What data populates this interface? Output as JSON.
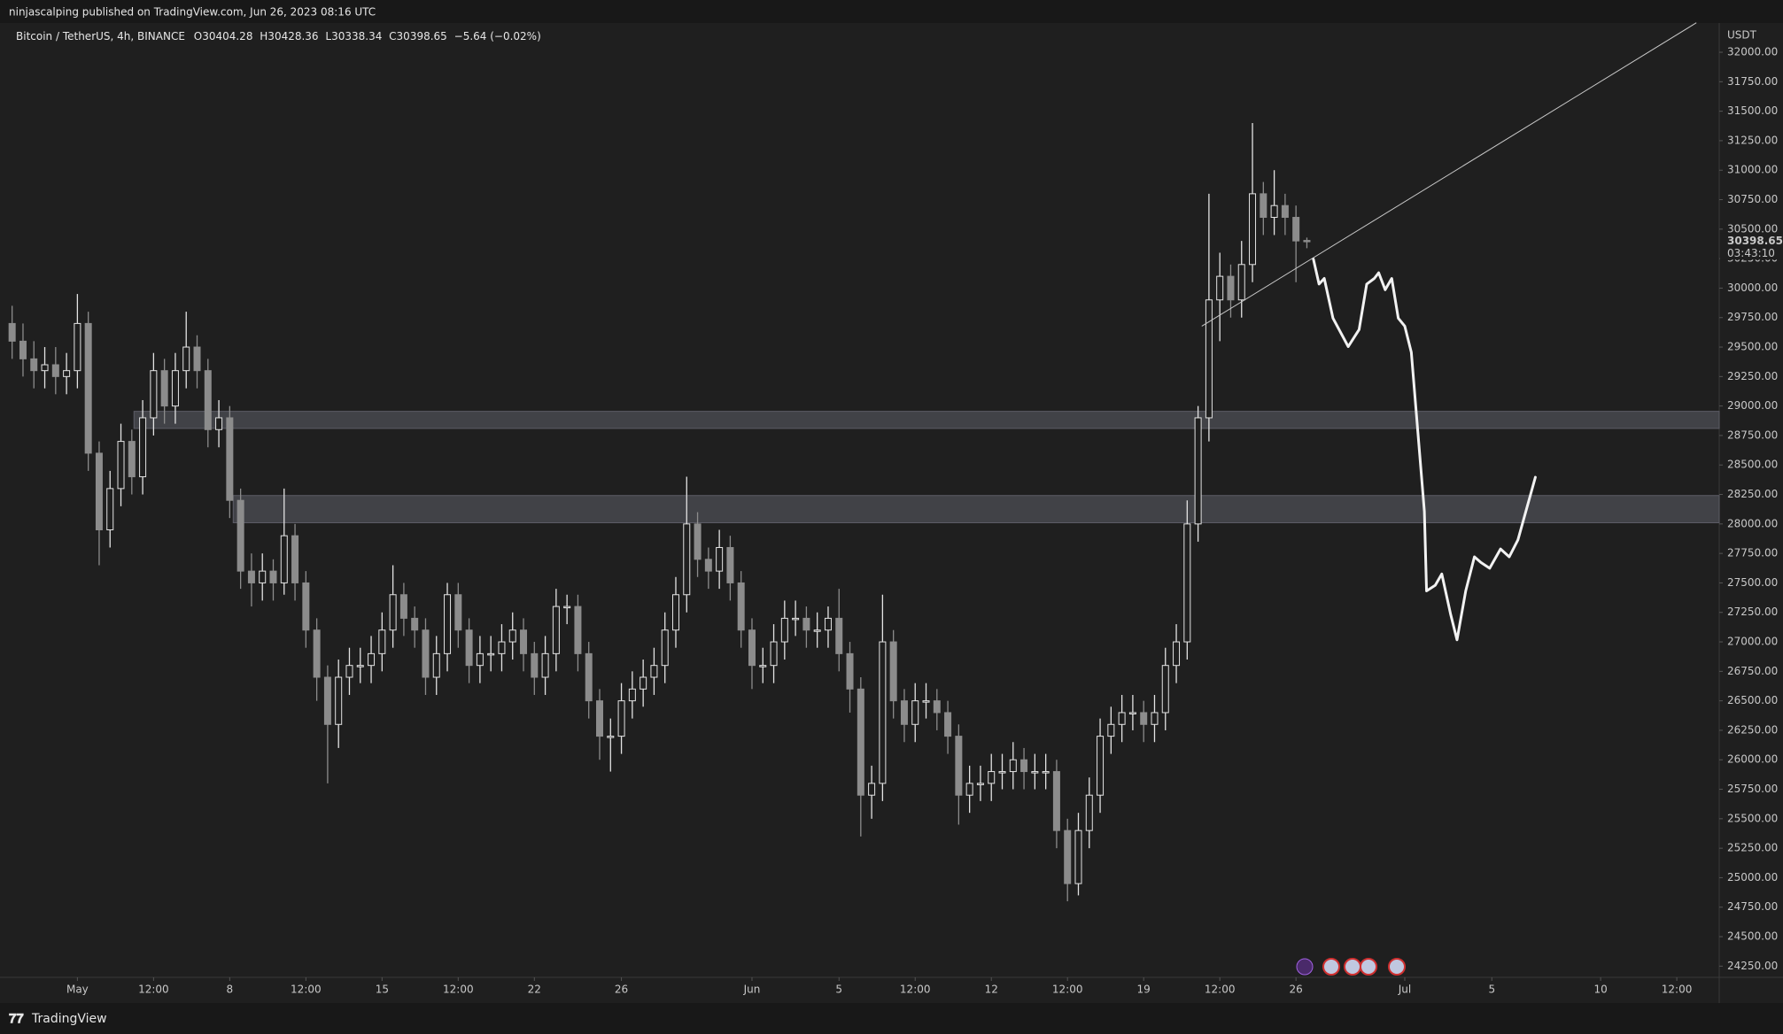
{
  "header": {
    "publisher": "ninjascalping published on TradingView.com, Jun 26, 2023 08:16 UTC"
  },
  "footer": {
    "brand": "TradingView"
  },
  "chart_data": {
    "type": "candlestick",
    "symbol": "Bitcoin / TetherUS, 4h, BINANCE",
    "ohlc_legend": [
      "O30404.28",
      "H30428.36",
      "L30338.34",
      "C30398.65",
      "−5.64 (−0.02%)"
    ],
    "currency": "USDT",
    "last_price_label": "30398.65",
    "countdown": "03:43:10",
    "up_color": "#e3e3e3",
    "down_color": "#8c8c8c",
    "grid": false,
    "xlim": [
      -3.15,
      75.45
    ],
    "ylim": [
      24155,
      32248
    ],
    "xticks": [
      {
        "value": 0,
        "label": "May"
      },
      {
        "value": 3.5,
        "label": "12:00"
      },
      {
        "value": 7,
        "label": "8"
      },
      {
        "value": 10.5,
        "label": "12:00"
      },
      {
        "value": 14,
        "label": "15"
      },
      {
        "value": 17.5,
        "label": "12:00"
      },
      {
        "value": 21,
        "label": "22"
      },
      {
        "value": 25,
        "label": "26"
      },
      {
        "value": 31,
        "label": "Jun"
      },
      {
        "value": 35,
        "label": "5"
      },
      {
        "value": 38.5,
        "label": "12:00"
      },
      {
        "value": 42,
        "label": "12"
      },
      {
        "value": 45.5,
        "label": "12:00"
      },
      {
        "value": 49,
        "label": "19"
      },
      {
        "value": 52.5,
        "label": "12:00"
      },
      {
        "value": 56,
        "label": "26"
      },
      {
        "value": 61,
        "label": "Jul"
      },
      {
        "value": 65,
        "label": "5"
      },
      {
        "value": 70,
        "label": "10"
      },
      {
        "value": 73.5,
        "label": "12:00"
      }
    ],
    "yticks": [
      {
        "value": 24250,
        "label": "24250.00"
      },
      {
        "value": 24500,
        "label": "24500.00"
      },
      {
        "value": 24750,
        "label": "24750.00"
      },
      {
        "value": 25000,
        "label": "25000.00"
      },
      {
        "value": 25250,
        "label": "25250.00"
      },
      {
        "value": 25500,
        "label": "25500.00"
      },
      {
        "value": 25750,
        "label": "25750.00"
      },
      {
        "value": 26000,
        "label": "26000.00"
      },
      {
        "value": 26250,
        "label": "26250.00"
      },
      {
        "value": 26500,
        "label": "26500.00"
      },
      {
        "value": 26750,
        "label": "26750.00"
      },
      {
        "value": 27000,
        "label": "27000.00"
      },
      {
        "value": 27250,
        "label": "27250.00"
      },
      {
        "value": 27500,
        "label": "27500.00"
      },
      {
        "value": 27750,
        "label": "27750.00"
      },
      {
        "value": 28000,
        "label": "28000.00"
      },
      {
        "value": 28250,
        "label": "28250.00"
      },
      {
        "value": 28500,
        "label": "28500.00"
      },
      {
        "value": 28750,
        "label": "28750.00"
      },
      {
        "value": 29000,
        "label": "29000.00"
      },
      {
        "value": 29250,
        "label": "29250.00"
      },
      {
        "value": 29500,
        "label": "29500.00"
      },
      {
        "value": 29750,
        "label": "29750.00"
      },
      {
        "value": 30000,
        "label": "30000.00"
      },
      {
        "value": 30250,
        "label": "30250.00"
      },
      {
        "value": 30500,
        "label": "30500.00"
      },
      {
        "value": 30750,
        "label": "30750.00"
      },
      {
        "value": 31000,
        "label": "31000.00"
      },
      {
        "value": 31250,
        "label": "31250.00"
      },
      {
        "value": 31500,
        "label": "31500.00"
      },
      {
        "value": 31750,
        "label": "31750.00"
      },
      {
        "value": 32000,
        "label": "32000.00"
      }
    ],
    "x": [
      -3,
      -2.5,
      -2,
      -1.5,
      -1,
      -0.5,
      0,
      0.5,
      1,
      1.5,
      2,
      2.5,
      3,
      3.5,
      4,
      4.5,
      5,
      5.5,
      6,
      6.5,
      7,
      7.5,
      8,
      8.5,
      9,
      9.5,
      10,
      10.5,
      11,
      11.5,
      12,
      12.5,
      13,
      13.5,
      14,
      14.5,
      15,
      15.5,
      16,
      16.5,
      17,
      17.5,
      18,
      18.5,
      19,
      19.5,
      20,
      20.5,
      21,
      21.5,
      22,
      22.5,
      23,
      23.5,
      24,
      24.5,
      25,
      25.5,
      26,
      26.5,
      27,
      27.5,
      28,
      28.5,
      29,
      29.5,
      30,
      30.5,
      31,
      31.5,
      32,
      32.5,
      33,
      33.5,
      34,
      34.5,
      35,
      35.5,
      36,
      36.5,
      37,
      37.5,
      38,
      38.5,
      39,
      39.5,
      40,
      40.5,
      41,
      41.5,
      42,
      42.5,
      43,
      43.5,
      44,
      44.5,
      45,
      45.5,
      46,
      46.5,
      47,
      47.5,
      48,
      48.5,
      49,
      49.5,
      50,
      50.5,
      51,
      51.5,
      52,
      52.5,
      53,
      53.5,
      54,
      54.5,
      55,
      55.5,
      56,
      56.5
    ],
    "open": [
      29700,
      29550,
      29400,
      29300,
      29350,
      29250,
      29300,
      29700,
      28600,
      27950,
      28300,
      28700,
      28400,
      28900,
      29300,
      29000,
      29300,
      29500,
      29300,
      28800,
      28900,
      28200,
      27600,
      27500,
      27600,
      27500,
      27900,
      27500,
      27100,
      26700,
      26300,
      26700,
      26800,
      26800,
      26900,
      27100,
      27400,
      27200,
      27100,
      26700,
      26900,
      27400,
      27100,
      26800,
      26900,
      26900,
      27000,
      27100,
      26900,
      26700,
      26900,
      27300,
      27300,
      26900,
      26500,
      26200,
      26200,
      26500,
      26600,
      26700,
      26800,
      27100,
      27400,
      28000,
      27700,
      27600,
      27800,
      27500,
      27100,
      26800,
      26800,
      27000,
      27200,
      27200,
      27100,
      27100,
      27200,
      26900,
      26600,
      25700,
      25800,
      27000,
      26500,
      26300,
      26500,
      26500,
      26400,
      26200,
      25700,
      25800,
      25800,
      25900,
      25900,
      26000,
      25900,
      25900,
      25900,
      25400,
      24950,
      25400,
      25700,
      26200,
      26300,
      26400,
      26400,
      26300,
      26400,
      26800,
      27000,
      28000,
      28900,
      29900,
      30100,
      29900,
      30200,
      30800,
      30600,
      30700,
      30600,
      30404.28
    ],
    "high": [
      29850,
      29700,
      29550,
      29500,
      29500,
      29450,
      29950,
      29800,
      28700,
      28450,
      28850,
      28800,
      29050,
      29450,
      29400,
      29450,
      29800,
      29600,
      29400,
      29050,
      29000,
      28300,
      27750,
      27750,
      27700,
      28300,
      28000,
      27600,
      27200,
      26800,
      26850,
      26950,
      26950,
      27050,
      27250,
      27650,
      27500,
      27300,
      27200,
      27050,
      27500,
      27500,
      27200,
      27050,
      27050,
      27150,
      27250,
      27200,
      27000,
      27050,
      27450,
      27400,
      27400,
      27000,
      26600,
      26350,
      26650,
      26750,
      26850,
      26950,
      27250,
      27550,
      28400,
      28100,
      27800,
      27950,
      27900,
      27600,
      27200,
      26950,
      27150,
      27350,
      27350,
      27300,
      27250,
      27300,
      27450,
      27000,
      26700,
      25950,
      27400,
      27100,
      26600,
      26650,
      26650,
      26600,
      26500,
      26300,
      25950,
      25950,
      26050,
      26050,
      26150,
      26100,
      26050,
      26050,
      26000,
      25500,
      25550,
      25850,
      26350,
      26450,
      26550,
      26550,
      26500,
      26550,
      26950,
      27150,
      28200,
      29000,
      30800,
      30300,
      30200,
      30400,
      31400,
      30900,
      31000,
      30800,
      30700,
      30428.36
    ],
    "low": [
      29400,
      29250,
      29150,
      29150,
      29100,
      29100,
      29150,
      28450,
      27650,
      27800,
      28150,
      28250,
      28250,
      28750,
      28850,
      28850,
      29150,
      29150,
      28650,
      28650,
      28050,
      27450,
      27300,
      27350,
      27350,
      27400,
      27350,
      26950,
      26500,
      25800,
      26100,
      26550,
      26650,
      26650,
      26750,
      26950,
      27050,
      26950,
      26550,
      26550,
      26750,
      26950,
      26650,
      26650,
      26750,
      26750,
      26850,
      26750,
      26550,
      26550,
      26750,
      27150,
      26750,
      26350,
      26000,
      25900,
      26050,
      26350,
      26450,
      26550,
      26650,
      26950,
      27250,
      27550,
      27450,
      27450,
      27350,
      26950,
      26600,
      26650,
      26650,
      26850,
      27050,
      26950,
      26950,
      26950,
      26750,
      26400,
      25350,
      25500,
      25650,
      26350,
      26150,
      26150,
      26350,
      26250,
      26050,
      25450,
      25550,
      25650,
      25650,
      25750,
      25750,
      25750,
      25750,
      25750,
      25250,
      24800,
      24850,
      25250,
      25550,
      26050,
      26150,
      26250,
      26150,
      26150,
      26250,
      26650,
      26850,
      27850,
      28700,
      29550,
      29750,
      29750,
      30050,
      30450,
      30450,
      30450,
      30050,
      30338.34
    ],
    "close": [
      29550,
      29400,
      29300,
      29350,
      29250,
      29300,
      29700,
      28600,
      27950,
      28300,
      28700,
      28400,
      28900,
      29300,
      29000,
      29300,
      29500,
      29300,
      28800,
      28900,
      28200,
      27600,
      27500,
      27600,
      27500,
      27900,
      27500,
      27100,
      26700,
      26300,
      26700,
      26800,
      26800,
      26900,
      27100,
      27400,
      27200,
      27100,
      26700,
      26900,
      27400,
      27100,
      26800,
      26900,
      26900,
      27000,
      27100,
      26900,
      26700,
      26900,
      27300,
      27300,
      26900,
      26500,
      26200,
      26200,
      26500,
      26600,
      26700,
      26800,
      27100,
      27400,
      28000,
      27700,
      27600,
      27800,
      27500,
      27100,
      26800,
      26800,
      27000,
      27200,
      27200,
      27100,
      27100,
      27200,
      26900,
      26600,
      25700,
      25800,
      27000,
      26500,
      26300,
      26500,
      26500,
      26400,
      26200,
      25700,
      25800,
      25800,
      25900,
      25900,
      26000,
      25900,
      25900,
      25900,
      25400,
      24950,
      25400,
      25700,
      26200,
      26300,
      26400,
      26400,
      26300,
      26400,
      26800,
      27000,
      28000,
      28900,
      29900,
      30100,
      29900,
      30200,
      30800,
      30600,
      30700,
      30600,
      30400,
      30398.65
    ],
    "zones": [
      {
        "start": 2.6,
        "low": 28810,
        "high": 28955
      },
      {
        "start": 7.16,
        "low": 28010,
        "high": 28241
      }
    ],
    "trendline": {
      "x": [
        51.67,
        74.4
      ],
      "y": [
        29677,
        32250
      ]
    },
    "projection": {
      "x": [
        56.8,
        57.06,
        57.3,
        57.7,
        58.4,
        58.9,
        59.25,
        59.6,
        59.8,
        60.1,
        60.4,
        60.7,
        61,
        61.3,
        61.6,
        61.9,
        62,
        62.4,
        62.7,
        63.1,
        63.4,
        63.8,
        64.2,
        64.5,
        64.9,
        65.4,
        65.8,
        66.2,
        67
      ],
      "y": [
        30246,
        30034,
        30082,
        29745,
        29504,
        29648,
        30034,
        30082,
        30130,
        29986,
        30082,
        29745,
        29677,
        29455,
        28781,
        28107,
        27432,
        27480,
        27576,
        27239,
        27017,
        27432,
        27721,
        27673,
        27624,
        27788,
        27721,
        27865,
        28396
      ]
    }
  }
}
